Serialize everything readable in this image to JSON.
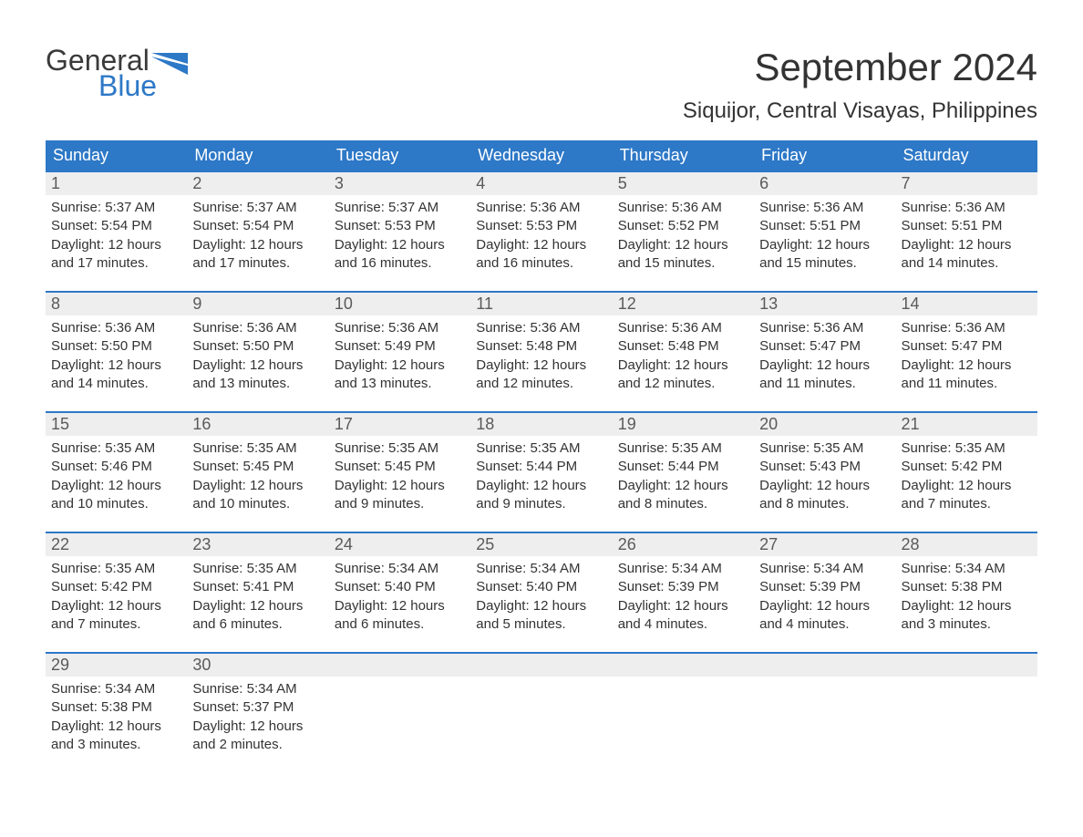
{
  "logo": {
    "text_top": "General",
    "text_bottom": "Blue",
    "flag_color": "#2d78c7",
    "top_color": "#3a3a3a"
  },
  "title": "September 2024",
  "location": "Siquijor, Central Visayas, Philippines",
  "colors": {
    "header_bg": "#2d78c7",
    "header_text": "#ffffff",
    "daynum_bg": "#eeeeee",
    "daynum_text": "#5a5a5a",
    "body_text": "#333333",
    "week_border": "#2d78c7",
    "page_bg": "#ffffff"
  },
  "days_of_week": [
    "Sunday",
    "Monday",
    "Tuesday",
    "Wednesday",
    "Thursday",
    "Friday",
    "Saturday"
  ],
  "weeks": [
    [
      {
        "n": "1",
        "sr": "5:37 AM",
        "ss": "5:54 PM",
        "dl": "12 hours and 17 minutes."
      },
      {
        "n": "2",
        "sr": "5:37 AM",
        "ss": "5:54 PM",
        "dl": "12 hours and 17 minutes."
      },
      {
        "n": "3",
        "sr": "5:37 AM",
        "ss": "5:53 PM",
        "dl": "12 hours and 16 minutes."
      },
      {
        "n": "4",
        "sr": "5:36 AM",
        "ss": "5:53 PM",
        "dl": "12 hours and 16 minutes."
      },
      {
        "n": "5",
        "sr": "5:36 AM",
        "ss": "5:52 PM",
        "dl": "12 hours and 15 minutes."
      },
      {
        "n": "6",
        "sr": "5:36 AM",
        "ss": "5:51 PM",
        "dl": "12 hours and 15 minutes."
      },
      {
        "n": "7",
        "sr": "5:36 AM",
        "ss": "5:51 PM",
        "dl": "12 hours and 14 minutes."
      }
    ],
    [
      {
        "n": "8",
        "sr": "5:36 AM",
        "ss": "5:50 PM",
        "dl": "12 hours and 14 minutes."
      },
      {
        "n": "9",
        "sr": "5:36 AM",
        "ss": "5:50 PM",
        "dl": "12 hours and 13 minutes."
      },
      {
        "n": "10",
        "sr": "5:36 AM",
        "ss": "5:49 PM",
        "dl": "12 hours and 13 minutes."
      },
      {
        "n": "11",
        "sr": "5:36 AM",
        "ss": "5:48 PM",
        "dl": "12 hours and 12 minutes."
      },
      {
        "n": "12",
        "sr": "5:36 AM",
        "ss": "5:48 PM",
        "dl": "12 hours and 12 minutes."
      },
      {
        "n": "13",
        "sr": "5:36 AM",
        "ss": "5:47 PM",
        "dl": "12 hours and 11 minutes."
      },
      {
        "n": "14",
        "sr": "5:36 AM",
        "ss": "5:47 PM",
        "dl": "12 hours and 11 minutes."
      }
    ],
    [
      {
        "n": "15",
        "sr": "5:35 AM",
        "ss": "5:46 PM",
        "dl": "12 hours and 10 minutes."
      },
      {
        "n": "16",
        "sr": "5:35 AM",
        "ss": "5:45 PM",
        "dl": "12 hours and 10 minutes."
      },
      {
        "n": "17",
        "sr": "5:35 AM",
        "ss": "5:45 PM",
        "dl": "12 hours and 9 minutes."
      },
      {
        "n": "18",
        "sr": "5:35 AM",
        "ss": "5:44 PM",
        "dl": "12 hours and 9 minutes."
      },
      {
        "n": "19",
        "sr": "5:35 AM",
        "ss": "5:44 PM",
        "dl": "12 hours and 8 minutes."
      },
      {
        "n": "20",
        "sr": "5:35 AM",
        "ss": "5:43 PM",
        "dl": "12 hours and 8 minutes."
      },
      {
        "n": "21",
        "sr": "5:35 AM",
        "ss": "5:42 PM",
        "dl": "12 hours and 7 minutes."
      }
    ],
    [
      {
        "n": "22",
        "sr": "5:35 AM",
        "ss": "5:42 PM",
        "dl": "12 hours and 7 minutes."
      },
      {
        "n": "23",
        "sr": "5:35 AM",
        "ss": "5:41 PM",
        "dl": "12 hours and 6 minutes."
      },
      {
        "n": "24",
        "sr": "5:34 AM",
        "ss": "5:40 PM",
        "dl": "12 hours and 6 minutes."
      },
      {
        "n": "25",
        "sr": "5:34 AM",
        "ss": "5:40 PM",
        "dl": "12 hours and 5 minutes."
      },
      {
        "n": "26",
        "sr": "5:34 AM",
        "ss": "5:39 PM",
        "dl": "12 hours and 4 minutes."
      },
      {
        "n": "27",
        "sr": "5:34 AM",
        "ss": "5:39 PM",
        "dl": "12 hours and 4 minutes."
      },
      {
        "n": "28",
        "sr": "5:34 AM",
        "ss": "5:38 PM",
        "dl": "12 hours and 3 minutes."
      }
    ],
    [
      {
        "n": "29",
        "sr": "5:34 AM",
        "ss": "5:38 PM",
        "dl": "12 hours and 3 minutes."
      },
      {
        "n": "30",
        "sr": "5:34 AM",
        "ss": "5:37 PM",
        "dl": "12 hours and 2 minutes."
      },
      null,
      null,
      null,
      null,
      null
    ]
  ],
  "labels": {
    "sunrise": "Sunrise: ",
    "sunset": "Sunset: ",
    "daylight": "Daylight: "
  }
}
